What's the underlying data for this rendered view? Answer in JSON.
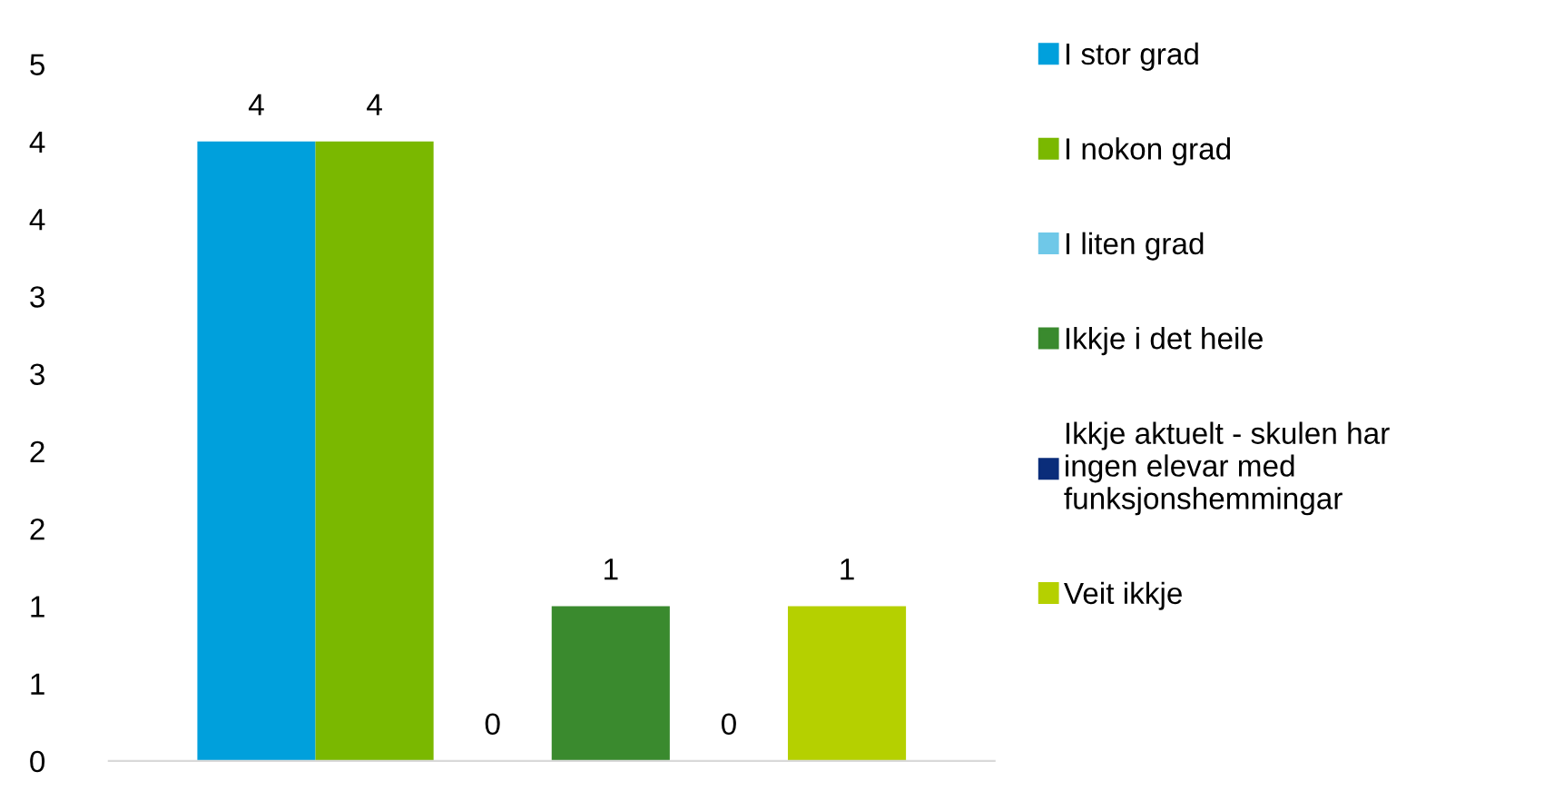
{
  "chart_data": {
    "type": "bar",
    "categories": [
      null
    ],
    "series": [
      {
        "name": "I stor grad",
        "color": "#00a0dc",
        "values": [
          4
        ]
      },
      {
        "name": "I nokon grad",
        "color": "#7ab800",
        "values": [
          4
        ]
      },
      {
        "name": "I liten grad",
        "color": "#6fc8e8",
        "values": [
          0
        ]
      },
      {
        "name": "Ikkje i det heile",
        "color": "#3a8a2e",
        "values": [
          1
        ]
      },
      {
        "name": "Ikkje aktuelt - skulen har\ningen elevar med\nfunksjonshemmingar",
        "color": "#0a2d7a",
        "values": [
          0
        ]
      },
      {
        "name": "Veit ikkje",
        "color": "#b5d000",
        "values": [
          1
        ]
      }
    ],
    "ylim": [
      0,
      4.5
    ],
    "yticks": [
      0,
      {
        "value": 0.5,
        "label": "1"
      },
      1,
      {
        "value": 1.5,
        "label": "2"
      },
      2,
      {
        "value": 2.5,
        "label": "3"
      },
      3,
      {
        "value": 3.5,
        "label": "4"
      },
      4,
      {
        "value": 4.5,
        "label": "5"
      }
    ],
    "data_labels": true,
    "legend": "right",
    "grid": false
  }
}
